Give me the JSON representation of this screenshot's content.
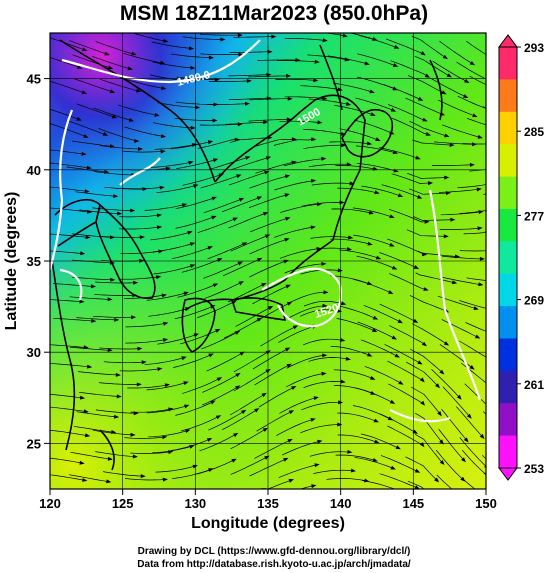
{
  "title": "MSM 18Z11Mar2023 (850.0hPa)",
  "x_axis": {
    "label": "Longitude (degrees)",
    "ticks": [
      "120",
      "125",
      "130",
      "135",
      "140",
      "145",
      "150"
    ],
    "range": [
      120,
      150
    ]
  },
  "y_axis": {
    "label": "Latitude  (degrees)",
    "ticks": [
      "25",
      "30",
      "35",
      "40",
      "45"
    ],
    "range": [
      22.5,
      47.5
    ]
  },
  "colorbar": {
    "ticks": [
      "293",
      "285",
      "277",
      "269",
      "261",
      "253"
    ],
    "range": [
      253,
      293
    ],
    "colors": [
      "#ff2a6a",
      "#ff7a1a",
      "#ffd000",
      "#d8f000",
      "#7af018",
      "#18e840",
      "#10e8a0",
      "#00d8e8",
      "#0090f0",
      "#0030e0",
      "#3020b0",
      "#9010c8",
      "#ff10ff"
    ]
  },
  "contour_labels": [
    "1480.0",
    "1500",
    "1520"
  ],
  "footer": {
    "line1": "Drawing by DCL (https://www.gfd-dennou.org/library/dcl/)",
    "line2": "Data from http://database.rish.kyoto-u.ac.jp/arch/jmadata/"
  }
}
